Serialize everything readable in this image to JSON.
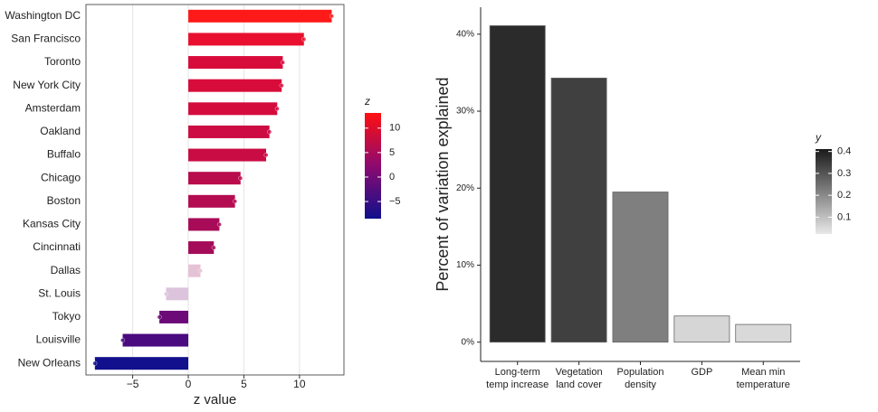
{
  "chart_data": [
    {
      "type": "bar",
      "orientation": "horizontal",
      "x_label": "z value",
      "categories": [
        "Washington DC",
        "San Francisco",
        "Toronto",
        "New York City",
        "Amsterdam",
        "Oakland",
        "Buffalo",
        "Chicago",
        "Boston",
        "Kansas City",
        "Cincinnati",
        "Dallas",
        "St. Louis",
        "Tokyo",
        "Louisville",
        "New Orleans"
      ],
      "values": [
        12.9,
        10.4,
        8.5,
        8.4,
        8.0,
        7.3,
        7.0,
        4.7,
        4.2,
        2.8,
        2.3,
        1.1,
        -2.0,
        -2.6,
        -5.9,
        -8.4
      ],
      "colors": [
        "#ff1a1a",
        "#e8102e",
        "#d80c3a",
        "#d80c3a",
        "#d40c3e",
        "#cc0c42",
        "#c90c44",
        "#b80c4c",
        "#b40c50",
        "#a80c58",
        "#a40c5a",
        "#e6c2d6",
        "#dcc4dc",
        "#6c0a78",
        "#4a0a80",
        "#12108c"
      ],
      "xlim": [
        -9.2,
        14
      ],
      "xticks": [
        {
          "value": -5,
          "label": "−5"
        },
        0,
        5,
        10
      ],
      "grid": true,
      "legend": {
        "title": "z",
        "lim": [
          -8.5,
          13.1
        ],
        "ticks": [
          {
            "value": -5,
            "label": "−5"
          },
          0,
          5,
          10
        ],
        "colors": [
          "#10108c",
          "#8c0a70",
          "#ff1010"
        ]
      }
    },
    {
      "type": "bar",
      "y_label": "Percent of variation explained",
      "categories": [
        "Long-term\ntemp increase",
        "Vegetation\nland cover",
        "Population\ndensity",
        "GDP",
        "Mean min\ntemperature"
      ],
      "values": [
        41.1,
        34.3,
        19.5,
        3.4,
        2.3
      ],
      "colors": [
        "#2b2b2b",
        "#404040",
        "#7f7f7f",
        "#d6d6d6",
        "#d9d9d9"
      ],
      "ylim": [
        -2.5,
        43.5
      ],
      "yticks": [
        {
          "value": 0,
          "label": "0%"
        },
        {
          "value": 10,
          "label": "10%"
        },
        {
          "value": 20,
          "label": "20%"
        },
        {
          "value": 30,
          "label": "30%"
        },
        {
          "value": 40,
          "label": "40%"
        }
      ],
      "legend": {
        "title": "y",
        "lim": [
          0.023,
          0.411
        ],
        "ticks": [
          0.1,
          0.2,
          0.3,
          0.4
        ],
        "colors": [
          "#e8e8e8",
          "#1a1a1a"
        ]
      }
    }
  ]
}
